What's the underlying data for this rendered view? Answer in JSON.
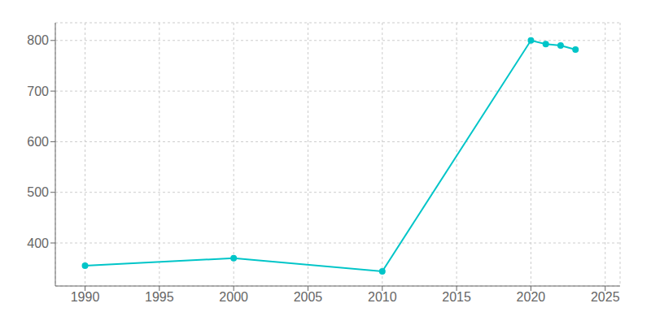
{
  "chart_data": {
    "type": "line",
    "x": [
      1990,
      2000,
      2010,
      2020,
      2021,
      2022,
      2023
    ],
    "values": [
      355,
      370,
      344,
      800,
      793,
      790,
      782
    ],
    "color": "#00c5c8",
    "marker": "circle",
    "xlim": [
      1988,
      2026
    ],
    "ylim": [
      315,
      835
    ],
    "xticks": [
      1990,
      1995,
      2000,
      2005,
      2010,
      2015,
      2020,
      2025
    ],
    "yticks": [
      400,
      500,
      600,
      700,
      800
    ],
    "grid": true
  }
}
